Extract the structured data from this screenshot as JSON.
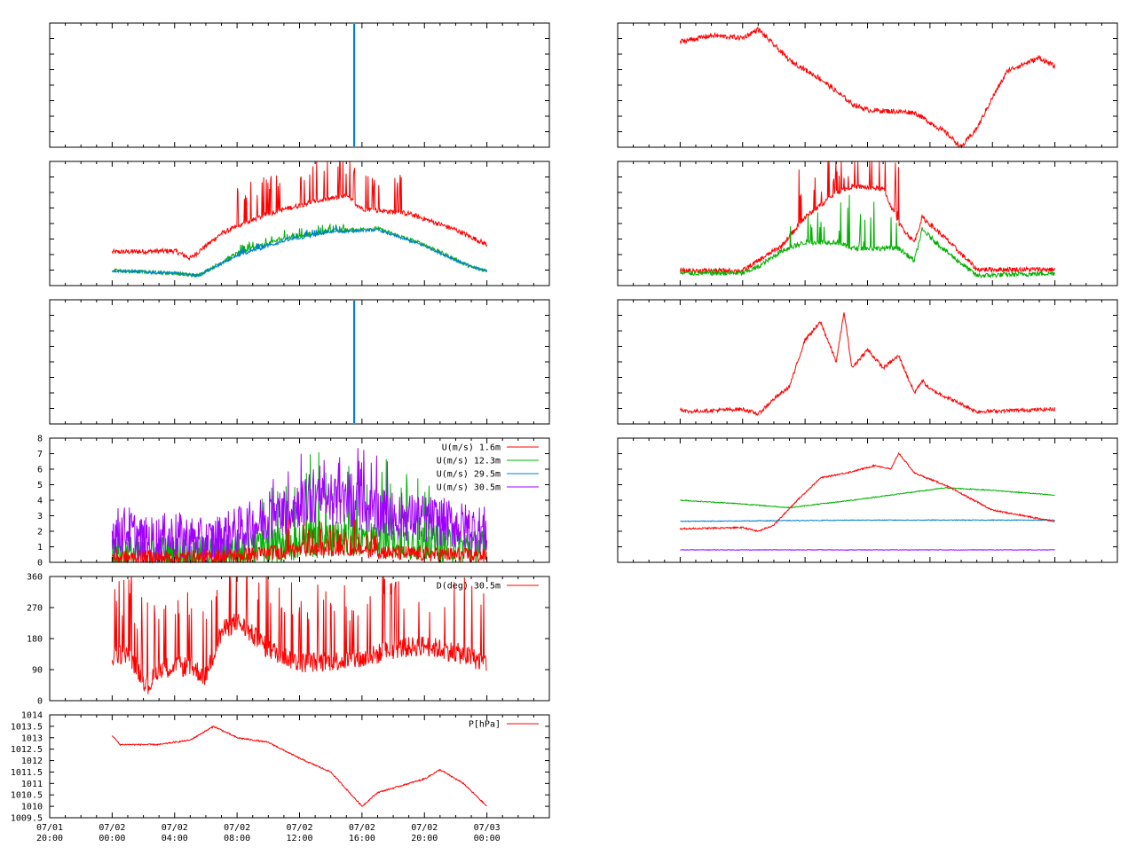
{
  "colors": {
    "red": "#ff0000",
    "green": "#00b000",
    "blue": "#0080d0",
    "purple": "#a000ff",
    "axis": "#000000"
  },
  "x_axis": {
    "range": [
      -4,
      28
    ],
    "tick_hours": [
      -4,
      0,
      4,
      8,
      12,
      16,
      20,
      24
    ],
    "tick_labels": [
      {
        "date": "07/01",
        "time": "20:00"
      },
      {
        "date": "07/02",
        "time": "00:00"
      },
      {
        "date": "07/02",
        "time": "04:00"
      },
      {
        "date": "07/02",
        "time": "08:00"
      },
      {
        "date": "07/02",
        "time": "12:00"
      },
      {
        "date": "07/02",
        "time": "16:00"
      },
      {
        "date": "07/02",
        "time": "20:00"
      },
      {
        "date": "07/03",
        "time": "00:00"
      }
    ]
  },
  "chart_data": [
    {
      "id": "L1",
      "type": "line",
      "ylim": [
        0,
        1
      ],
      "yticks": [],
      "legend": [],
      "series": [
        {
          "color": "blue",
          "kind": "vline",
          "x": 15.5
        }
      ]
    },
    {
      "id": "L2",
      "type": "line",
      "ylim": [
        0,
        1
      ],
      "yticks": [],
      "legend": [],
      "series": [
        {
          "color": "red",
          "kind": "sampled",
          "noise": 0.02,
          "spikes": [
            [
              8,
              19
            ],
            [
              0.18,
              0.32
            ]
          ],
          "x": [
            0,
            4,
            5,
            7,
            10,
            13,
            15,
            16,
            19,
            22,
            24
          ],
          "y": [
            0.27,
            0.28,
            0.22,
            0.42,
            0.58,
            0.68,
            0.72,
            0.62,
            0.58,
            0.45,
            0.33
          ]
        },
        {
          "color": "green",
          "kind": "sampled",
          "noise": 0.015,
          "spikes": [
            [
              8,
              15
            ],
            [
              0.03,
              0.06
            ]
          ],
          "x": [
            0,
            4,
            5.5,
            8,
            11,
            14,
            17,
            20,
            23,
            24
          ],
          "y": [
            0.12,
            0.1,
            0.08,
            0.26,
            0.38,
            0.44,
            0.46,
            0.33,
            0.15,
            0.12
          ]
        },
        {
          "color": "blue",
          "kind": "sampled",
          "noise": 0.012,
          "spikes": [
            [
              8,
              15
            ],
            [
              0.02,
              0.05
            ]
          ],
          "x": [
            0,
            4,
            5.5,
            8,
            11,
            14,
            17,
            20,
            23,
            24
          ],
          "y": [
            0.12,
            0.1,
            0.08,
            0.24,
            0.36,
            0.43,
            0.45,
            0.32,
            0.15,
            0.12
          ]
        }
      ]
    },
    {
      "id": "L3",
      "type": "line",
      "ylim": [
        0,
        1
      ],
      "yticks": [],
      "legend": [],
      "series": [
        {
          "color": "blue",
          "kind": "vline",
          "x": 15.5
        }
      ]
    },
    {
      "id": "L4",
      "type": "line",
      "ylim": [
        0,
        8
      ],
      "yticks": [
        0,
        1,
        2,
        3,
        4,
        5,
        6,
        7,
        8
      ],
      "legend": [
        {
          "label": "U(m/s)  1.6m",
          "color": "red"
        },
        {
          "label": "U(m/s) 12.3m",
          "color": "green"
        },
        {
          "label": "U(m/s) 29.5m",
          "color": "blue"
        },
        {
          "label": "U(m/s) 30.5m",
          "color": "purple"
        }
      ],
      "series": [
        {
          "color": "green",
          "kind": "sampled",
          "noise": 1.2,
          "spikes": [
            [
              9,
              21
            ],
            [
              2.5,
              4.5
            ]
          ],
          "x": [
            0,
            6,
            9,
            12,
            15,
            18,
            21,
            24
          ],
          "y": [
            0.6,
            0.5,
            0.9,
            1.3,
            1.6,
            1.4,
            1.2,
            0.9
          ]
        },
        {
          "color": "purple",
          "kind": "sampled",
          "noise": 1.6,
          "spikes": [
            [
              10,
              18
            ],
            [
              1.5,
              3.0
            ]
          ],
          "x": [
            0,
            1,
            2,
            4,
            6,
            8,
            10,
            12,
            14,
            16,
            18,
            20,
            22,
            24
          ],
          "y": [
            1.9,
            2.1,
            1.3,
            1.7,
            1.2,
            2.0,
            2.8,
            3.8,
            4.0,
            3.5,
            3.0,
            2.8,
            2.4,
            2.0
          ]
        },
        {
          "color": "red",
          "kind": "sampled",
          "noise": 0.5,
          "spikes": [
            [
              11,
              17
            ],
            [
              0.8,
              1.6
            ]
          ],
          "x": [
            0,
            6,
            9,
            12,
            15,
            18,
            24
          ],
          "y": [
            0.3,
            0.3,
            0.5,
            0.8,
            0.9,
            0.6,
            0.4
          ]
        }
      ]
    },
    {
      "id": "L5",
      "type": "line",
      "ylim": [
        0,
        360
      ],
      "yticks": [
        0,
        90,
        180,
        270,
        360
      ],
      "legend": [
        {
          "label": "D(deg)  30.5m",
          "color": "red"
        }
      ],
      "series": [
        {
          "color": "red",
          "kind": "sampled",
          "noise": 30,
          "spikes": [
            [
              0,
              24
            ],
            [
              120,
              220
            ]
          ],
          "x": [
            0,
            1,
            2.3,
            3,
            5,
            6,
            7,
            8,
            9,
            10,
            12,
            14,
            16,
            18,
            20,
            22,
            24
          ],
          "y": [
            130,
            140,
            40,
            95,
            100,
            70,
            200,
            230,
            190,
            150,
            110,
            115,
            120,
            150,
            160,
            140,
            110
          ]
        }
      ]
    },
    {
      "id": "L6",
      "type": "line",
      "ylim": [
        1009.5,
        1014
      ],
      "yticks": [
        1009.5,
        1010,
        1010.5,
        1011,
        1011.5,
        1012,
        1012.5,
        1013,
        1013.5,
        1014
      ],
      "legend": [
        {
          "label": "P[hPa]",
          "color": "red"
        }
      ],
      "series": [
        {
          "color": "red",
          "kind": "sampled",
          "noise": 0.03,
          "spikes": [],
          "x": [
            0,
            0.5,
            3,
            5,
            6.5,
            8,
            10,
            12,
            14,
            16,
            17,
            20,
            21,
            22.5,
            24
          ],
          "y": [
            1013.1,
            1012.7,
            1012.7,
            1012.9,
            1013.5,
            1013.0,
            1012.8,
            1012.1,
            1011.5,
            1010.0,
            1010.6,
            1011.2,
            1011.6,
            1011.0,
            1010.0
          ]
        }
      ]
    },
    {
      "id": "R1",
      "type": "line",
      "ylim": [
        0,
        1
      ],
      "yticks": [],
      "legend": [],
      "series": [
        {
          "color": "red",
          "kind": "sampled",
          "noise": 0.02,
          "spikes": [],
          "x": [
            0,
            2,
            4,
            5,
            7,
            9,
            11,
            12,
            15,
            17,
            18,
            19,
            20,
            21,
            23,
            24
          ],
          "y": [
            0.85,
            0.9,
            0.88,
            0.95,
            0.7,
            0.55,
            0.35,
            0.3,
            0.28,
            0.12,
            0.0,
            0.15,
            0.4,
            0.62,
            0.72,
            0.65
          ]
        }
      ]
    },
    {
      "id": "R2",
      "type": "line",
      "ylim": [
        0,
        1
      ],
      "yticks": [],
      "legend": [],
      "series": [
        {
          "color": "red",
          "kind": "sampled",
          "noise": 0.02,
          "spikes": [
            [
              7,
              14
            ],
            [
              0.05,
              0.5
            ]
          ],
          "x": [
            0,
            4,
            5,
            6.5,
            8,
            10,
            11,
            13,
            14,
            15,
            15.5,
            17,
            19,
            24
          ],
          "y": [
            0.12,
            0.12,
            0.2,
            0.32,
            0.55,
            0.75,
            0.8,
            0.78,
            0.5,
            0.35,
            0.55,
            0.38,
            0.13,
            0.13
          ]
        },
        {
          "color": "green",
          "kind": "sampled",
          "noise": 0.02,
          "spikes": [
            [
              7,
              14
            ],
            [
              0.05,
              0.45
            ]
          ],
          "x": [
            0,
            4,
            5,
            6.5,
            8,
            10,
            11,
            13,
            14,
            15,
            15.5,
            17,
            19,
            24
          ],
          "y": [
            0.1,
            0.1,
            0.15,
            0.28,
            0.35,
            0.35,
            0.3,
            0.3,
            0.3,
            0.2,
            0.45,
            0.28,
            0.08,
            0.1
          ]
        }
      ]
    },
    {
      "id": "R3",
      "type": "line",
      "ylim": [
        0,
        1
      ],
      "yticks": [],
      "legend": [],
      "series": [
        {
          "color": "red",
          "kind": "sampled",
          "noise": 0.015,
          "spikes": [],
          "x": [
            0,
            0.5,
            4,
            5,
            6,
            7,
            8,
            9,
            10,
            10.5,
            11,
            12,
            13,
            14,
            15,
            15.5,
            16,
            19,
            24
          ],
          "y": [
            0.12,
            0.1,
            0.12,
            0.08,
            0.2,
            0.3,
            0.68,
            0.82,
            0.5,
            0.9,
            0.45,
            0.6,
            0.45,
            0.55,
            0.25,
            0.35,
            0.28,
            0.1,
            0.12
          ]
        }
      ]
    },
    {
      "id": "R4",
      "type": "line",
      "ylim": [
        0,
        1
      ],
      "yticks": [],
      "legend": [],
      "series": [
        {
          "color": "green",
          "kind": "sampled",
          "noise": 0.004,
          "spikes": [],
          "x": [
            0,
            4,
            7,
            11,
            14,
            17,
            20,
            24
          ],
          "y": [
            0.5,
            0.47,
            0.44,
            0.5,
            0.55,
            0.6,
            0.58,
            0.54
          ]
        },
        {
          "color": "blue",
          "kind": "sampled",
          "noise": 0.003,
          "spikes": [],
          "x": [
            0,
            12,
            24
          ],
          "y": [
            0.33,
            0.34,
            0.34
          ]
        },
        {
          "color": "purple",
          "kind": "sampled",
          "noise": 0.002,
          "spikes": [],
          "x": [
            0,
            24
          ],
          "y": [
            0.1,
            0.1
          ]
        },
        {
          "color": "red",
          "kind": "sampled",
          "noise": 0.006,
          "spikes": [],
          "x": [
            0,
            4,
            5,
            6,
            7.5,
            9,
            11,
            12.5,
            13.5,
            14,
            15,
            17,
            20,
            24
          ],
          "y": [
            0.27,
            0.28,
            0.25,
            0.3,
            0.5,
            0.68,
            0.73,
            0.78,
            0.75,
            0.88,
            0.72,
            0.62,
            0.42,
            0.33
          ]
        }
      ]
    }
  ]
}
